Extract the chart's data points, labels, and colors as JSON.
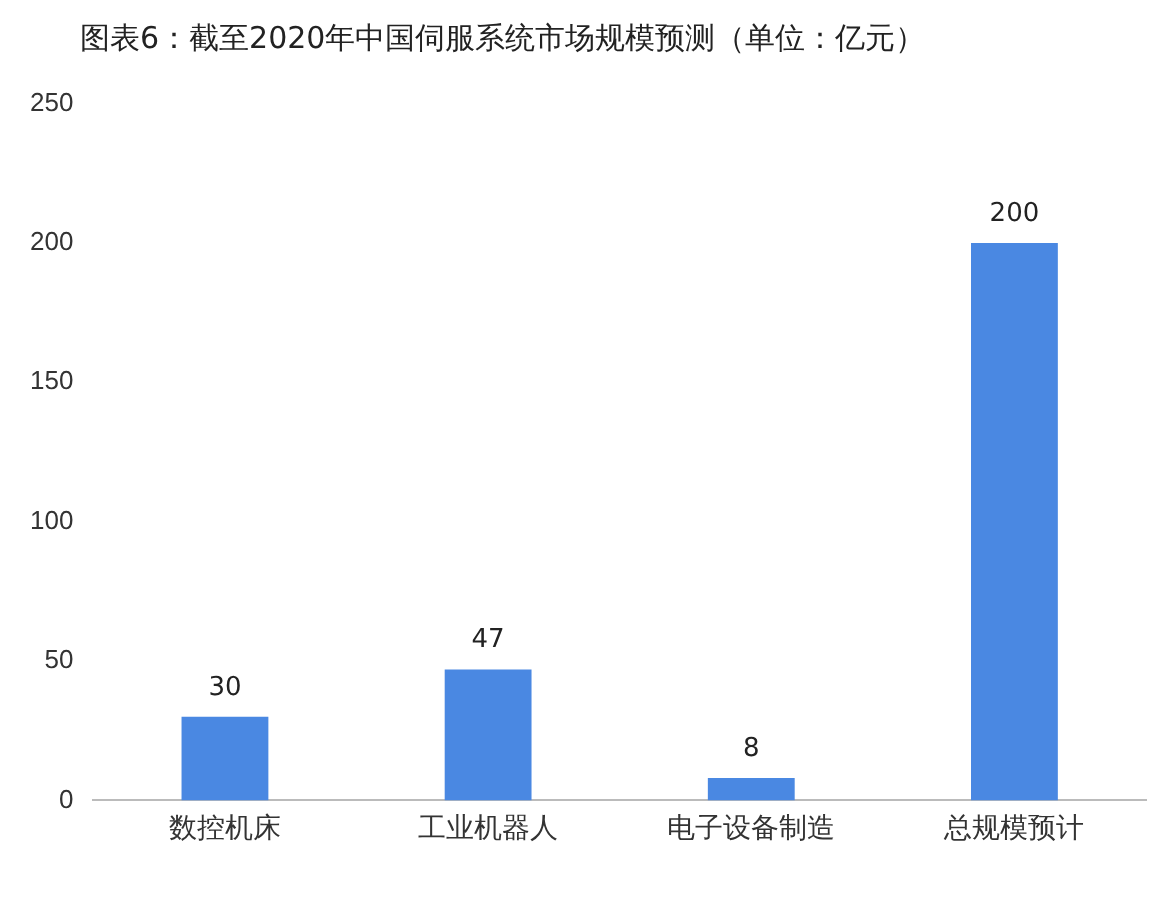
{
  "chart_data": {
    "type": "bar",
    "title": "图表6：截至2020年中国伺服系统市场规模预测（单位：亿元）",
    "categories": [
      "数控机床",
      "工业机器人",
      "电子设备制造",
      "总规模预计"
    ],
    "values": [
      30,
      47,
      8,
      200
    ],
    "color": "#4a88e2",
    "ylim": [
      0,
      250
    ],
    "yticks": [
      0,
      50,
      100,
      150,
      200,
      250
    ],
    "grid": false,
    "data_labels": true
  }
}
